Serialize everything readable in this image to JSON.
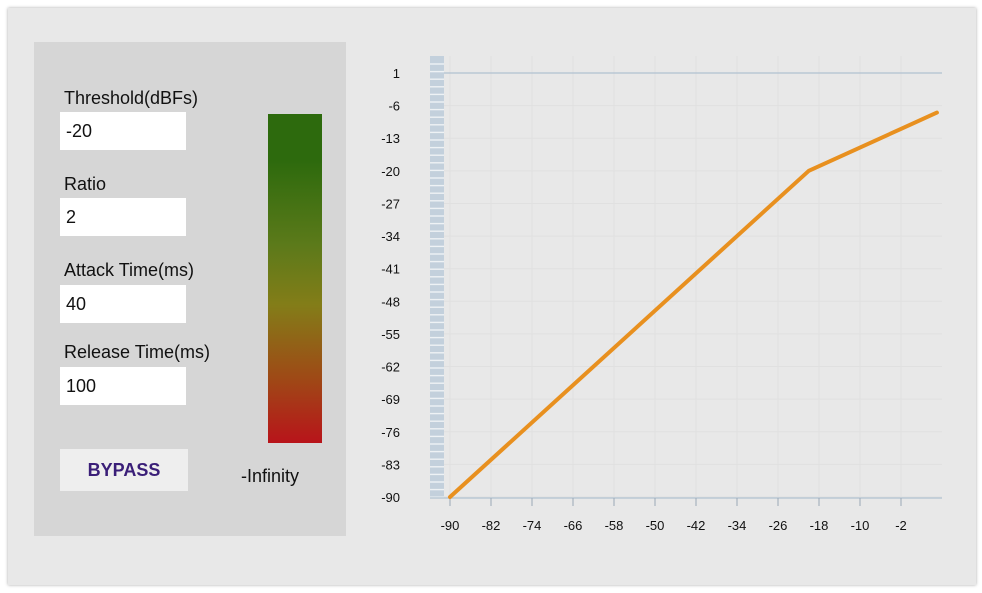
{
  "controls": {
    "threshold": {
      "label": "Threshold(dBFs)",
      "value": "-20"
    },
    "ratio": {
      "label": "Ratio",
      "value": "2"
    },
    "attack": {
      "label": "Attack Time(ms)",
      "value": "40"
    },
    "release": {
      "label": "Release Time(ms)",
      "value": "100"
    },
    "bypass_label": "BYPASS"
  },
  "meter": {
    "label": "-Infinity",
    "colors": [
      "#2d6a0d",
      "#837d18",
      "#b8141a"
    ]
  },
  "chart_data": {
    "type": "line",
    "title": "",
    "xlabel": "",
    "ylabel": "",
    "x_ticks": [
      -90,
      -82,
      -74,
      -66,
      -58,
      -50,
      -42,
      -34,
      -26,
      -18,
      -10,
      -2
    ],
    "y_ticks": [
      1,
      -6,
      -13,
      -20,
      -27,
      -34,
      -41,
      -48,
      -55,
      -62,
      -69,
      -76,
      -83,
      -90
    ],
    "xlim": [
      -92,
      6
    ],
    "ylim": [
      -90,
      1
    ],
    "series": [
      {
        "color": "#e8901f",
        "x": [
          -90,
          -20,
          5
        ],
        "y": [
          -90,
          -20,
          -7.5
        ]
      }
    ],
    "grid": true,
    "reference_line": {
      "y": 1,
      "color": "#b9c7d4"
    }
  }
}
